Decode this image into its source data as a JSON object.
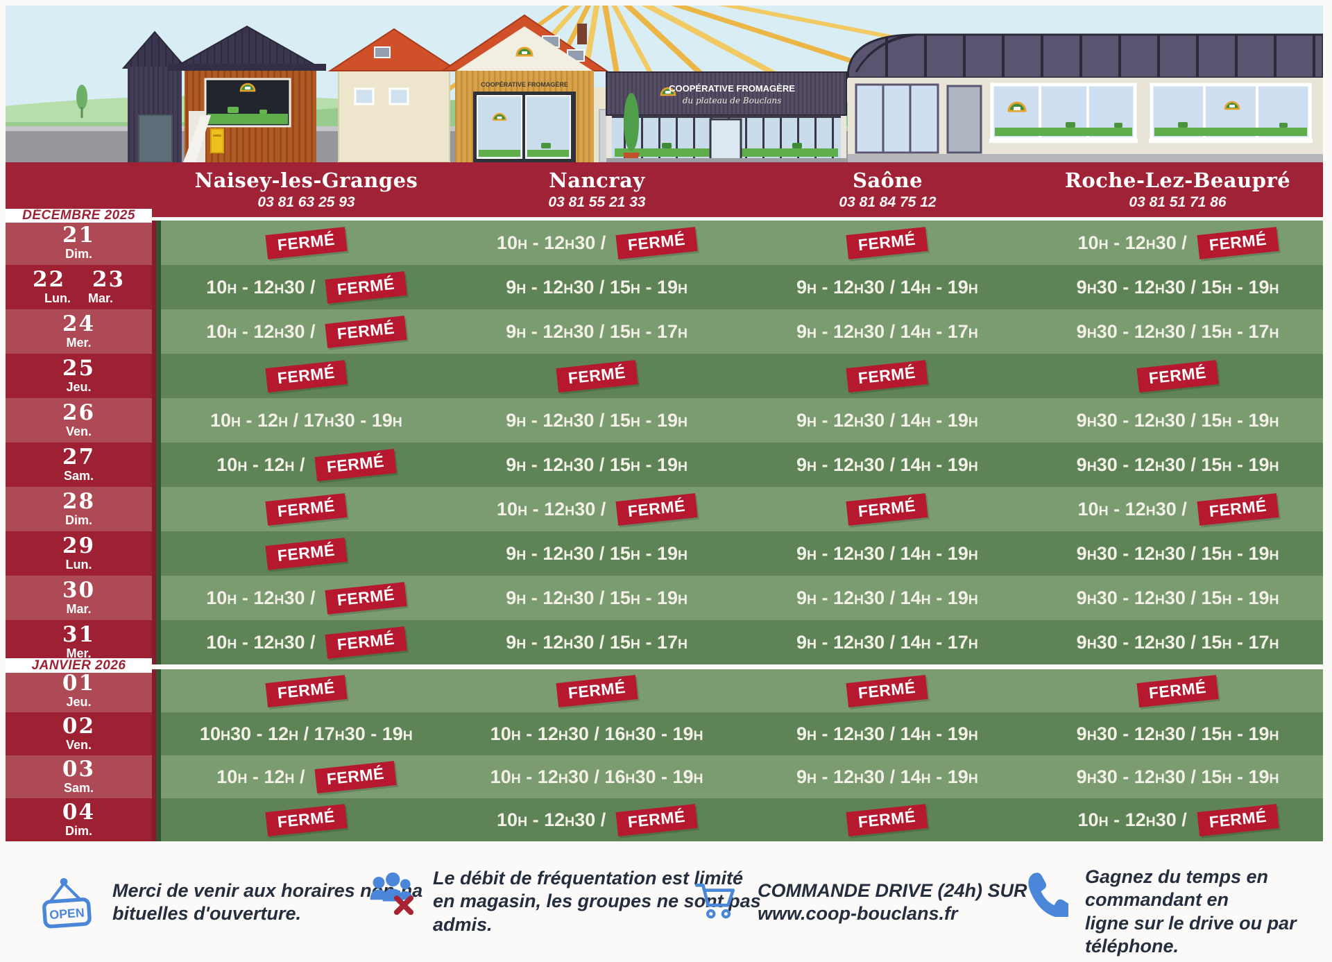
{
  "poster": {
    "locations": [
      {
        "name": "Naisey-les-Granges",
        "phone": "03 81 63 25 93"
      },
      {
        "name": "Nancray",
        "phone": "03 81 55 21 33"
      },
      {
        "name": "Saône",
        "phone": "03 81 84 75 12"
      },
      {
        "name": "Roche-Lez-Beaupré",
        "phone": "03 81 51 71 86"
      }
    ],
    "closed_label": "FERMÉ",
    "schedule_sections": [
      {
        "month_label": "DÉCEMBRE 2025",
        "rows": [
          {
            "day_numbers": "21",
            "day_names": "Dim.",
            "cells": [
              "FERMÉ",
              "10H - 12H30 / FERMÉ",
              "FERMÉ",
              "10H - 12H30 / FERMÉ"
            ]
          },
          {
            "day_numbers": "22 23",
            "day_names": "Lun. Mar.",
            "cells": [
              "10H - 12H30 / FERMÉ",
              "9H - 12H30 / 15H - 19H",
              "9H - 12H30 / 14H - 19H",
              "9H30 - 12H30 / 15H - 19H"
            ]
          },
          {
            "day_numbers": "24",
            "day_names": "Mer.",
            "cells": [
              "10H - 12H30 / FERMÉ",
              "9H - 12H30 / 15H - 17H",
              "9H - 12H30 / 14H - 17H",
              "9H30 - 12H30 / 15H - 17H"
            ]
          },
          {
            "day_numbers": "25",
            "day_names": "Jeu.",
            "cells": [
              "FERMÉ",
              "FERMÉ",
              "FERMÉ",
              "FERMÉ"
            ]
          },
          {
            "day_numbers": "26",
            "day_names": "Ven.",
            "cells": [
              "10H - 12H / 17H30 - 19H",
              "9H - 12H30 / 15H - 19H",
              "9H - 12H30 / 14H - 19H",
              "9H30 - 12H30 / 15H - 19H"
            ]
          },
          {
            "day_numbers": "27",
            "day_names": "Sam.",
            "cells": [
              "10H - 12H / FERMÉ",
              "9H - 12H30 / 15H - 19H",
              "9H - 12H30 / 14H - 19H",
              "9H30 - 12H30 / 15H - 19H"
            ]
          },
          {
            "day_numbers": "28",
            "day_names": "Dim.",
            "cells": [
              "FERMÉ",
              "10H - 12H30 / FERMÉ",
              "FERMÉ",
              "10H - 12H30 / FERMÉ"
            ]
          },
          {
            "day_numbers": "29",
            "day_names": "Lun.",
            "cells": [
              "FERMÉ",
              "9H - 12H30 / 15H - 19H",
              "9H - 12H30 / 14H - 19H",
              "9H30 - 12H30 / 15H - 19H"
            ]
          },
          {
            "day_numbers": "30",
            "day_names": "Mar.",
            "cells": [
              "10H - 12H30 / FERMÉ",
              "9H - 12H30 / 15H - 19H",
              "9H - 12H30 / 14H - 19H",
              "9H30 - 12H30 / 15H - 19H"
            ]
          },
          {
            "day_numbers": "31",
            "day_names": "Mer.",
            "cells": [
              "10H - 12H30 / FERMÉ",
              "9H - 12H30 / 15H - 17H",
              "9H - 12H30 / 14H - 17H",
              "9H30 - 12H30 / 15H - 17H"
            ]
          }
        ]
      },
      {
        "month_label": "JANVIER 2026",
        "rows": [
          {
            "day_numbers": "01",
            "day_names": "Jeu.",
            "cells": [
              "FERMÉ",
              "FERMÉ",
              "FERMÉ",
              "FERMÉ"
            ]
          },
          {
            "day_numbers": "02",
            "day_names": "Ven.",
            "cells": [
              "10H30 - 12H / 17H30 - 19H",
              "10H - 12H30 / 16H30 - 19H",
              "9H - 12H30 / 14H - 19H",
              "9H30 - 12H30 / 15H - 19H"
            ]
          },
          {
            "day_numbers": "03",
            "day_names": "Sam.",
            "cells": [
              "10H - 12H / FERMÉ",
              "10H - 12H30 / 16H30 - 19H",
              "9H - 12H30 / 14H - 19H",
              "9H30 - 12H30 / 15H - 19H"
            ]
          },
          {
            "day_numbers": "04",
            "day_names": "Dim.",
            "cells": [
              "FERMÉ",
              "10H - 12H30 / FERMÉ",
              "FERMÉ",
              "10H - 12H30 / FERMÉ"
            ]
          }
        ]
      }
    ],
    "footer_notes": [
      {
        "icon": "open-sign",
        "text": "Merci de venir aux horaires non-ha\nbituelles d'ouverture."
      },
      {
        "icon": "no-groups",
        "text": "Le débit de fréquentation est limité\nen magasin, les groupes ne sont pas\nadmis."
      },
      {
        "icon": "cart",
        "text": "COMMANDE DRIVE (24h) SUR\nwww.coop-bouclans.fr"
      },
      {
        "icon": "phone",
        "text": "Gagnez du temps en commandant en\nligne sur le drive ou par\ntéléphone."
      }
    ],
    "open_sign_label": "OPEN",
    "illustration": {
      "saone_sign_line1": "COOPÉRATIVE FROMAGÈRE",
      "saone_sign_line2": "du plateau de Bouclans",
      "nancray_sign": "COOPÉRATIVE FROMAGÈRE"
    },
    "colors": {
      "header_red": "#a02236",
      "date_row_dark": "#9d2133",
      "date_row_light": "#ad4a55",
      "hours_row_dark": "#5e8356",
      "hours_row_light": "#7b9b70",
      "badge_red": "#b5182f",
      "month_label_red": "#9e2133",
      "footer_icon_blue": "#4a87d9",
      "footer_text_navy": "#242e3e"
    }
  }
}
